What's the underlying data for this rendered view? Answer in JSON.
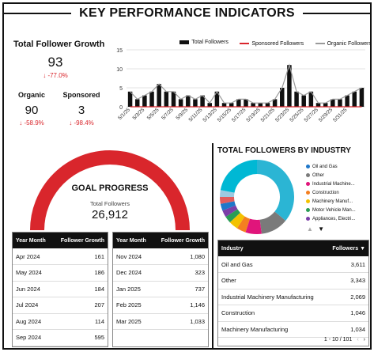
{
  "page_title": "KEY PERFORMANCE INDICATORS",
  "kpis": {
    "total_title": "Total Follower Growth",
    "total_value": "93",
    "total_delta": "-77.0%",
    "organic_label": "Organic",
    "organic_value": "90",
    "organic_delta": "-58.9%",
    "sponsored_label": "Sponsored",
    "sponsored_value": "3",
    "sponsored_delta": "-98.4%"
  },
  "trend_chart": {
    "legend_total": "Total Followers",
    "legend_sponsored": "Sponsored Followers",
    "legend_organic": "Organic Followers",
    "colors": {
      "bars": "#111111",
      "sponsored": "#d9262c",
      "organic": "#9a9a9a"
    }
  },
  "chart_data": [
    {
      "type": "bar",
      "title": "",
      "ylim": [
        0,
        15
      ],
      "yticks": [
        "0",
        "5",
        "10",
        "15"
      ],
      "x_tick_labels": [
        "5/1/25",
        "5/3/25",
        "5/5/25",
        "5/7/25",
        "5/9/25",
        "5/11/25",
        "5/13/25",
        "5/15/25",
        "5/17/25",
        "5/19/25",
        "5/21/25",
        "5/23/25",
        "5/25/25",
        "5/27/25",
        "5/29/25",
        "5/31/25"
      ],
      "series": [
        {
          "name": "Total Followers",
          "kind": "bar",
          "values": [
            4,
            2,
            3,
            4,
            6,
            4,
            4,
            2,
            3,
            2,
            3,
            1,
            4,
            1,
            1,
            2,
            2,
            1,
            1,
            1,
            2,
            5,
            11,
            4,
            3,
            4,
            1,
            1,
            2,
            2,
            3,
            4,
            5
          ]
        },
        {
          "name": "Sponsored Followers",
          "kind": "line",
          "values": [
            0,
            0,
            0,
            0,
            0,
            0,
            0,
            0,
            0,
            0,
            0,
            0,
            0,
            0,
            0,
            0,
            0,
            0,
            0,
            0,
            0,
            0,
            0,
            0,
            0,
            0,
            0,
            0,
            0,
            0,
            0,
            0,
            0
          ]
        },
        {
          "name": "Organic Followers",
          "kind": "line",
          "values": [
            4,
            2,
            3,
            4,
            6,
            4,
            4,
            2,
            3,
            2,
            3,
            1,
            4,
            1,
            1,
            2,
            2,
            1,
            1,
            1,
            2,
            5,
            11,
            4,
            3,
            4,
            1,
            1,
            2,
            2,
            3,
            4,
            5
          ]
        }
      ]
    },
    {
      "type": "pie",
      "title": "TOTAL FOLLOWERS BY INDUSTRY",
      "donut": true,
      "categories": [
        "",
        "Other",
        "",
        "",
        "",
        "",
        "",
        "",
        "",
        "",
        ""
      ],
      "values": [
        36,
        12,
        7,
        4,
        4,
        3,
        3,
        3,
        3,
        3,
        22
      ],
      "colors": [
        "#2bb5d4",
        "#7a7a7a",
        "#e0157b",
        "#f47f20",
        "#f3c200",
        "#2a9d56",
        "#7b3fa8",
        "#1f77c9",
        "#e25c5c",
        "#9ecae1",
        "#00b8d4"
      ]
    }
  ],
  "industry": {
    "title": "TOTAL FOLLOWERS BY INDUSTRY",
    "legend": [
      {
        "label": "Oil and Gas",
        "color": "#1f77c9"
      },
      {
        "label": "Other",
        "color": "#7a7a7a"
      },
      {
        "label": "Industrial Machine...",
        "color": "#e0157b"
      },
      {
        "label": "Construction",
        "color": "#f47f20"
      },
      {
        "label": "Machinery Manuf...",
        "color": "#f3c200"
      },
      {
        "label": "Motor Vehicle Man...",
        "color": "#2a9d56"
      },
      {
        "label": "Appliances, Electri...",
        "color": "#7b3fa8"
      }
    ],
    "table_headers": [
      "Industry",
      "Followers"
    ],
    "rows": [
      [
        "Oil and Gas",
        "3,611"
      ],
      [
        "Other",
        "3,343"
      ],
      [
        "Industrial Machinery Manufacturing",
        "2,069"
      ],
      [
        "Construction",
        "1,046"
      ],
      [
        "Machinery Manufacturing",
        "1,034"
      ]
    ],
    "pagination": "1 - 10 / 101"
  },
  "goal": {
    "title": "GOAL PROGRESS",
    "label": "Total Followers",
    "value": "26,912",
    "progress": 1.0,
    "color": "#d9262c"
  },
  "monthly": {
    "headers": [
      "Year Month",
      "Follower Growth"
    ],
    "left_rows": [
      [
        "Apr 2024",
        "161"
      ],
      [
        "May 2024",
        "186"
      ],
      [
        "Jun 2024",
        "184"
      ],
      [
        "Jul 2024",
        "207"
      ],
      [
        "Aug 2024",
        "114"
      ],
      [
        "Sep 2024",
        "595"
      ]
    ],
    "right_rows": [
      [
        "Nov 2024",
        "1,080"
      ],
      [
        "Dec 2024",
        "323"
      ],
      [
        "Jan 2025",
        "737"
      ],
      [
        "Feb 2025",
        "1,146"
      ],
      [
        "Mar 2025",
        "1,033"
      ]
    ]
  }
}
